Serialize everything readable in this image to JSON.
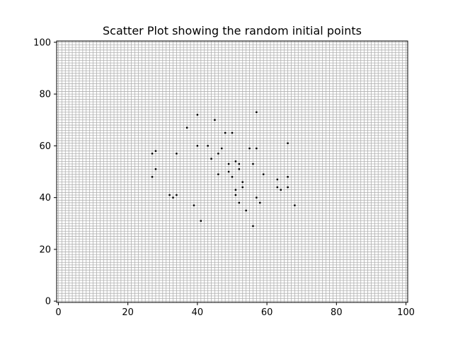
{
  "chart_data": {
    "type": "scatter",
    "title": "Scatter Plot showing the random initial points",
    "xlabel": "",
    "ylabel": "",
    "xlim": [
      -0.5,
      100.5
    ],
    "ylim": [
      -0.5,
      100.5
    ],
    "xticks": [
      0,
      20,
      40,
      60,
      80,
      100
    ],
    "yticks": [
      0,
      20,
      40,
      60,
      80,
      100
    ],
    "grid": true,
    "grid_step": 1,
    "colors": {
      "grid": "#b0b0b0",
      "point": "#000000",
      "axes": "#000000",
      "background": "#ffffff"
    },
    "points": [
      [
        40,
        72
      ],
      [
        57,
        73
      ],
      [
        45,
        70
      ],
      [
        37,
        67
      ],
      [
        48,
        65
      ],
      [
        50,
        65
      ],
      [
        40,
        60
      ],
      [
        43,
        60
      ],
      [
        55,
        59
      ],
      [
        57,
        59
      ],
      [
        66,
        61
      ],
      [
        47,
        59
      ],
      [
        28,
        58
      ],
      [
        27,
        57
      ],
      [
        34,
        57
      ],
      [
        46,
        57
      ],
      [
        44,
        55
      ],
      [
        51,
        54
      ],
      [
        49,
        53
      ],
      [
        52,
        53
      ],
      [
        56,
        53
      ],
      [
        28,
        51
      ],
      [
        52,
        51
      ],
      [
        49,
        50
      ],
      [
        46,
        49
      ],
      [
        59,
        49
      ],
      [
        27,
        48
      ],
      [
        50,
        48
      ],
      [
        63,
        47
      ],
      [
        66,
        48
      ],
      [
        53,
        46
      ],
      [
        53,
        44
      ],
      [
        63,
        44
      ],
      [
        64,
        43
      ],
      [
        66,
        44
      ],
      [
        51,
        43
      ],
      [
        51,
        41
      ],
      [
        32,
        41
      ],
      [
        33,
        40
      ],
      [
        34,
        41
      ],
      [
        57,
        40
      ],
      [
        52,
        38
      ],
      [
        58,
        38
      ],
      [
        39,
        37
      ],
      [
        68,
        37
      ],
      [
        54,
        35
      ],
      [
        41,
        31
      ],
      [
        56,
        29
      ]
    ]
  }
}
